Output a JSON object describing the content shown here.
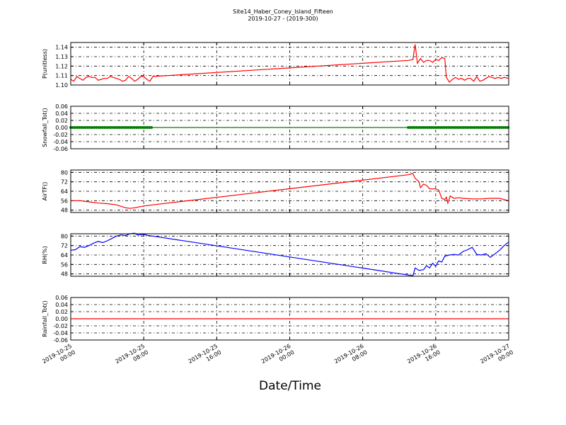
{
  "title": "Site14_Haber_Coney_Island_Fifteen",
  "subtitle": "2019-10-27 - (2019-300)",
  "xlabel": "Date/Time",
  "x_ticks": [
    {
      "x": "2019-10-25 00:00",
      "l1": "2019-10-25",
      "l2": "00:00"
    },
    {
      "x": "2019-10-25 08:00",
      "l1": "2019-10-25",
      "l2": "08:00"
    },
    {
      "x": "2019-10-25 16:00",
      "l1": "2019-10-25",
      "l2": "16:00"
    },
    {
      "x": "2019-10-26 00:00",
      "l1": "2019-10-26",
      "l2": "00:00"
    },
    {
      "x": "2019-10-26 08:00",
      "l1": "2019-10-26",
      "l2": "08:00"
    },
    {
      "x": "2019-10-26 16:00",
      "l1": "2019-10-26",
      "l2": "16:00"
    },
    {
      "x": "2019-10-27 00:00",
      "l1": "2019-10-27",
      "l2": "00:00"
    }
  ],
  "chart_data": [
    {
      "type": "line",
      "ylabel": "P(unitless)",
      "ylim": [
        1.1,
        1.145
      ],
      "yticks": [
        "1.10",
        "1.11",
        "1.12",
        "1.13",
        "1.14"
      ],
      "xlim": [
        "2019-10-25 00:00",
        "2019-10-27 00:00"
      ],
      "grid": true,
      "color": "#ff0000",
      "marker": "none",
      "points": [
        [
          "2019-10-25 00:00",
          1.106
        ],
        [
          "2019-10-25 00:20",
          1.104
        ],
        [
          "2019-10-25 00:40",
          1.109
        ],
        [
          "2019-10-25 01:00",
          1.107
        ],
        [
          "2019-10-25 01:20",
          1.105
        ],
        [
          "2019-10-25 01:40",
          1.108
        ],
        [
          "2019-10-25 02:00",
          1.109
        ],
        [
          "2019-10-25 02:20",
          1.108
        ],
        [
          "2019-10-25 02:40",
          1.108
        ],
        [
          "2019-10-25 03:00",
          1.105
        ],
        [
          "2019-10-25 03:20",
          1.106
        ],
        [
          "2019-10-25 03:40",
          1.107
        ],
        [
          "2019-10-25 04:00",
          1.107
        ],
        [
          "2019-10-25 04:20",
          1.109
        ],
        [
          "2019-10-25 04:40",
          1.108
        ],
        [
          "2019-10-25 05:00",
          1.107
        ],
        [
          "2019-10-25 05:20",
          1.106
        ],
        [
          "2019-10-25 05:40",
          1.104
        ],
        [
          "2019-10-25 06:00",
          1.105
        ],
        [
          "2019-10-25 06:20",
          1.109
        ],
        [
          "2019-10-25 06:40",
          1.107
        ],
        [
          "2019-10-25 07:00",
          1.104
        ],
        [
          "2019-10-25 07:20",
          1.106
        ],
        [
          "2019-10-25 07:40",
          1.109
        ],
        [
          "2019-10-25 08:00",
          1.109
        ],
        [
          "2019-10-25 08:20",
          1.106
        ],
        [
          "2019-10-25 08:40",
          1.104
        ],
        [
          "2019-10-25 09:00",
          1.109
        ],
        [
          "2019-10-26 13:00",
          1.126
        ],
        [
          "2019-10-26 13:30",
          1.127
        ],
        [
          "2019-10-26 13:45",
          1.143
        ],
        [
          "2019-10-26 14:00",
          1.123
        ],
        [
          "2019-10-26 14:20",
          1.128
        ],
        [
          "2019-10-26 14:40",
          1.124
        ],
        [
          "2019-10-26 15:00",
          1.126
        ],
        [
          "2019-10-26 15:20",
          1.126
        ],
        [
          "2019-10-26 15:40",
          1.124
        ],
        [
          "2019-10-26 16:00",
          1.127
        ],
        [
          "2019-10-26 16:20",
          1.126
        ],
        [
          "2019-10-26 16:40",
          1.129
        ],
        [
          "2019-10-26 17:00",
          1.128
        ],
        [
          "2019-10-26 17:10",
          1.108
        ],
        [
          "2019-10-26 17:30",
          1.103
        ],
        [
          "2019-10-26 17:50",
          1.106
        ],
        [
          "2019-10-26 18:10",
          1.108
        ],
        [
          "2019-10-26 18:30",
          1.106
        ],
        [
          "2019-10-26 18:50",
          1.107
        ],
        [
          "2019-10-26 19:10",
          1.105
        ],
        [
          "2019-10-26 19:30",
          1.107
        ],
        [
          "2019-10-26 19:50",
          1.107
        ],
        [
          "2019-10-26 20:10",
          1.104
        ],
        [
          "2019-10-26 20:30",
          1.109
        ],
        [
          "2019-10-26 20:50",
          1.104
        ],
        [
          "2019-10-26 21:10",
          1.105
        ],
        [
          "2019-10-26 21:30",
          1.107
        ],
        [
          "2019-10-26 21:50",
          1.109
        ],
        [
          "2019-10-26 22:10",
          1.108
        ],
        [
          "2019-10-26 22:30",
          1.107
        ],
        [
          "2019-10-26 22:50",
          1.108
        ],
        [
          "2019-10-26 23:10",
          1.107
        ],
        [
          "2019-10-26 23:30",
          1.108
        ],
        [
          "2019-10-27 00:00",
          1.107
        ]
      ]
    },
    {
      "type": "line",
      "ylabel": "Snowfall_Tot()",
      "ylim": [
        -0.06,
        0.06
      ],
      "yticks": [
        "0.06",
        "0.04",
        "0.02",
        "0.00",
        "-0.02",
        "-0.04",
        "-0.06"
      ],
      "xlim": [
        "2019-10-25 00:00",
        "2019-10-27 00:00"
      ],
      "grid": true,
      "color": "#008000",
      "marker": "dots",
      "points": [
        [
          "2019-10-25 00:00",
          0
        ],
        [
          "2019-10-25 09:00",
          0
        ],
        [
          "2019-10-26 13:00",
          0
        ],
        [
          "2019-10-27 00:00",
          0
        ]
      ],
      "marker_ranges": [
        [
          "2019-10-25 00:00",
          "2019-10-25 09:00"
        ],
        [
          "2019-10-26 13:00",
          "2019-10-27 00:00"
        ]
      ]
    },
    {
      "type": "line",
      "ylabel": "AirTF()",
      "ylim": [
        46,
        82
      ],
      "yticks": [
        "48",
        "56",
        "64",
        "72",
        "80"
      ],
      "xlim": [
        "2019-10-25 00:00",
        "2019-10-27 00:00"
      ],
      "grid": true,
      "color": "#ff0000",
      "marker": "none",
      "points": [
        [
          "2019-10-25 00:00",
          56.0
        ],
        [
          "2019-10-25 01:00",
          56.0
        ],
        [
          "2019-10-25 02:00",
          55.0
        ],
        [
          "2019-10-25 03:00",
          54.0
        ],
        [
          "2019-10-25 04:00",
          53.5
        ],
        [
          "2019-10-25 05:00",
          52.5
        ],
        [
          "2019-10-25 06:00",
          50.0
        ],
        [
          "2019-10-25 06:30",
          49.5
        ],
        [
          "2019-10-25 07:00",
          50.0
        ],
        [
          "2019-10-25 08:00",
          51.5
        ],
        [
          "2019-10-25 09:00",
          52.5
        ],
        [
          "2019-10-26 13:00",
          78.0
        ],
        [
          "2019-10-26 13:30",
          79.0
        ],
        [
          "2019-10-26 13:45",
          75.0
        ],
        [
          "2019-10-26 14:10",
          72.0
        ],
        [
          "2019-10-26 14:20",
          67.0
        ],
        [
          "2019-10-26 14:40",
          70.0
        ],
        [
          "2019-10-26 15:00",
          69.0
        ],
        [
          "2019-10-26 15:20",
          66.0
        ],
        [
          "2019-10-26 16:00",
          66.0
        ],
        [
          "2019-10-26 16:20",
          65.0
        ],
        [
          "2019-10-26 16:40",
          58.0
        ],
        [
          "2019-10-26 17:00",
          57.0
        ],
        [
          "2019-10-26 17:10",
          59.0
        ],
        [
          "2019-10-26 17:20",
          54.0
        ],
        [
          "2019-10-26 17:35",
          60.0
        ],
        [
          "2019-10-26 18:00",
          58.0
        ],
        [
          "2019-10-26 18:30",
          58.5
        ],
        [
          "2019-10-26 19:00",
          58.0
        ],
        [
          "2019-10-26 20:00",
          57.5
        ],
        [
          "2019-10-26 21:00",
          57.5
        ],
        [
          "2019-10-26 22:00",
          58.0
        ],
        [
          "2019-10-26 23:00",
          58.0
        ],
        [
          "2019-10-26 23:30",
          57.0
        ],
        [
          "2019-10-27 00:00",
          56.0
        ]
      ]
    },
    {
      "type": "line",
      "ylabel": "RH(%)",
      "ylim": [
        46,
        82
      ],
      "yticks": [
        "48",
        "56",
        "64",
        "72",
        "80"
      ],
      "xlim": [
        "2019-10-25 00:00",
        "2019-10-27 00:00"
      ],
      "grid": true,
      "color": "#0000ff",
      "marker": "none",
      "points": [
        [
          "2019-10-25 00:00",
          68.0
        ],
        [
          "2019-10-25 00:30",
          68.5
        ],
        [
          "2019-10-25 01:00",
          71.0
        ],
        [
          "2019-10-25 01:30",
          70.5
        ],
        [
          "2019-10-25 02:00",
          72.0
        ],
        [
          "2019-10-25 02:30",
          74.0
        ],
        [
          "2019-10-25 03:00",
          75.5
        ],
        [
          "2019-10-25 03:30",
          74.5
        ],
        [
          "2019-10-25 04:00",
          76.0
        ],
        [
          "2019-10-25 04:30",
          78.0
        ],
        [
          "2019-10-25 05:00",
          80.0
        ],
        [
          "2019-10-25 05:30",
          81.0
        ],
        [
          "2019-10-25 06:00",
          80.5
        ],
        [
          "2019-10-25 06:30",
          82.0
        ],
        [
          "2019-10-25 07:00",
          82.5
        ],
        [
          "2019-10-25 07:20",
          81.0
        ],
        [
          "2019-10-25 08:00",
          81.5
        ],
        [
          "2019-10-25 08:30",
          80.5
        ],
        [
          "2019-10-25 09:00",
          80.0
        ],
        [
          "2019-10-26 13:00",
          47.0
        ],
        [
          "2019-10-26 13:30",
          46.5
        ],
        [
          "2019-10-26 13:45",
          53.0
        ],
        [
          "2019-10-26 14:10",
          51.0
        ],
        [
          "2019-10-26 14:40",
          51.5
        ],
        [
          "2019-10-26 15:00",
          55.0
        ],
        [
          "2019-10-26 15:20",
          53.0
        ],
        [
          "2019-10-26 15:40",
          57.0
        ],
        [
          "2019-10-26 16:00",
          54.5
        ],
        [
          "2019-10-26 16:20",
          59.0
        ],
        [
          "2019-10-26 16:40",
          58.0
        ],
        [
          "2019-10-26 17:00",
          63.0
        ],
        [
          "2019-10-26 17:30",
          64.0
        ],
        [
          "2019-10-26 18:00",
          64.5
        ],
        [
          "2019-10-26 18:30",
          64.0
        ],
        [
          "2019-10-26 19:00",
          67.0
        ],
        [
          "2019-10-26 19:30",
          68.5
        ],
        [
          "2019-10-26 20:00",
          70.5
        ],
        [
          "2019-10-26 20:30",
          64.5
        ],
        [
          "2019-10-26 21:00",
          64.0
        ],
        [
          "2019-10-26 21:30",
          65.0
        ],
        [
          "2019-10-26 22:00",
          62.0
        ],
        [
          "2019-10-26 22:30",
          65.0
        ],
        [
          "2019-10-26 23:00",
          68.0
        ],
        [
          "2019-10-26 23:30",
          72.0
        ],
        [
          "2019-10-27 00:00",
          75.0
        ]
      ]
    },
    {
      "type": "line",
      "ylabel": "Rainfall_Tot()",
      "ylim": [
        -0.06,
        0.06
      ],
      "yticks": [
        "0.06",
        "0.04",
        "0.02",
        "0.00",
        "-0.02",
        "-0.04",
        "-0.06"
      ],
      "xlim": [
        "2019-10-25 00:00",
        "2019-10-27 00:00"
      ],
      "grid": true,
      "color": "#ff0000",
      "marker": "none",
      "points": [
        [
          "2019-10-25 00:00",
          0
        ],
        [
          "2019-10-27 00:00",
          0
        ]
      ]
    }
  ]
}
